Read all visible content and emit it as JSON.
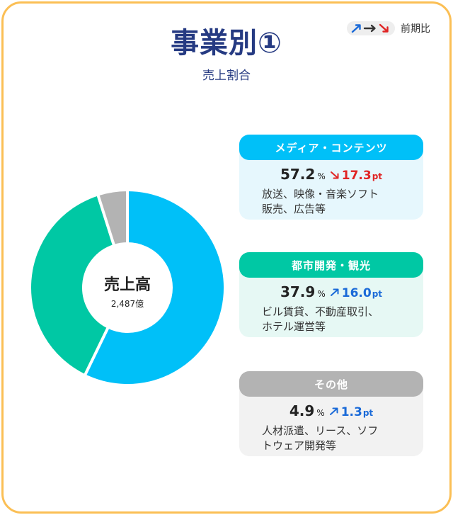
{
  "header": {
    "title": "事業別①",
    "subtitle": "売上割合",
    "legend_label": "前期比"
  },
  "colors": {
    "media": "#00c0f8",
    "urban": "#00c8a4",
    "other": "#b3b3b3",
    "up": "#1a6ad8",
    "down": "#e02424",
    "border": "#fbbf55",
    "title": "#253a82"
  },
  "donut": {
    "center_label": "売上高",
    "center_value": "2,487億"
  },
  "chart_data": {
    "type": "pie",
    "title": "売上割合",
    "unit": "%",
    "change_unit": "pt",
    "slices": [
      {
        "label": "メディア・コンテンツ",
        "value": 57.2,
        "change": 17.3,
        "direction": "down",
        "color": "#00c0f8"
      },
      {
        "label": "都市開発・観光",
        "value": 37.9,
        "change": 16.0,
        "direction": "up",
        "color": "#00c8a4"
      },
      {
        "label": "その他",
        "value": 4.9,
        "change": 1.3,
        "direction": "up",
        "color": "#b3b3b3"
      }
    ]
  },
  "segments": [
    {
      "name": "メディア・コンテンツ",
      "share": "57.2",
      "share_unit": "%",
      "change": "17.3",
      "change_unit": "pt",
      "direction": "down",
      "description_line1": "放送、映像・音楽ソフト",
      "description_line2": "販売、広告等"
    },
    {
      "name": "都市開発・観光",
      "share": "37.9",
      "share_unit": "%",
      "change": "16.0",
      "change_unit": "pt",
      "direction": "up",
      "description_line1": "ビル賃貸、不動産取引、",
      "description_line2": "ホテル運営等"
    },
    {
      "name": "その他",
      "share": "4.9",
      "share_unit": "%",
      "change": "1.3",
      "change_unit": "pt",
      "direction": "up",
      "description_line1": "人材派遣、リース、ソフ",
      "description_line2": "トウェア開発等"
    }
  ]
}
